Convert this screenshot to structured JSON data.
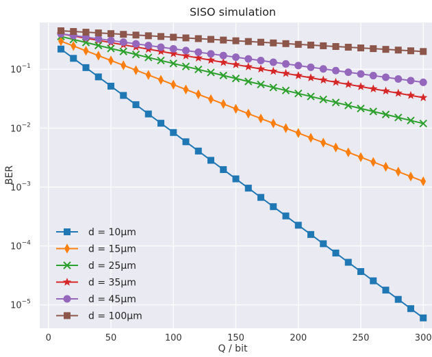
{
  "chart_data": {
    "type": "line",
    "title": "SISO simulation",
    "xlabel": "Q / bit",
    "ylabel": "BER",
    "xlim": [
      -7,
      307
    ],
    "ylim": [
      4e-06,
      0.62
    ],
    "yscale": "log",
    "grid": true,
    "legend_position": "bottom-left",
    "x_ticks": [
      0,
      50,
      100,
      150,
      200,
      250,
      300
    ],
    "y_ticks": [
      {
        "value": 1e-05,
        "label": "10",
        "exp": "−5"
      },
      {
        "value": 0.0001,
        "label": "10",
        "exp": "−4"
      },
      {
        "value": 0.001,
        "label": "10",
        "exp": "−3"
      },
      {
        "value": 0.01,
        "label": "10",
        "exp": "−2"
      },
      {
        "value": 0.1,
        "label": "10",
        "exp": "−1"
      }
    ],
    "x": [
      10,
      20,
      30,
      40,
      50,
      60,
      70,
      80,
      90,
      100,
      110,
      120,
      130,
      140,
      150,
      160,
      170,
      180,
      190,
      200,
      210,
      220,
      230,
      240,
      250,
      260,
      270,
      280,
      290,
      300
    ],
    "series": [
      {
        "name": "d = 10μm",
        "color": "#1f77b4",
        "marker": "square",
        "start": 0.22,
        "end": 6e-06
      },
      {
        "name": "d = 15μm",
        "color": "#ff7f0e",
        "marker": "thin-diamond",
        "start": 0.3,
        "end": 0.00125
      },
      {
        "name": "d = 25μm",
        "color": "#2ca02c",
        "marker": "x",
        "start": 0.36,
        "end": 0.012
      },
      {
        "name": "d = 35μm",
        "color": "#d62728",
        "marker": "star",
        "start": 0.4,
        "end": 0.033
      },
      {
        "name": "d = 45μm",
        "color": "#9467bd",
        "marker": "circle",
        "start": 0.4,
        "end": 0.06
      },
      {
        "name": "d = 100μm",
        "color": "#8c564b",
        "marker": "square",
        "start": 0.45,
        "end": 0.2
      }
    ],
    "colors": {
      "plot_background": "#eaeaf2",
      "grid": "#ffffff"
    }
  }
}
